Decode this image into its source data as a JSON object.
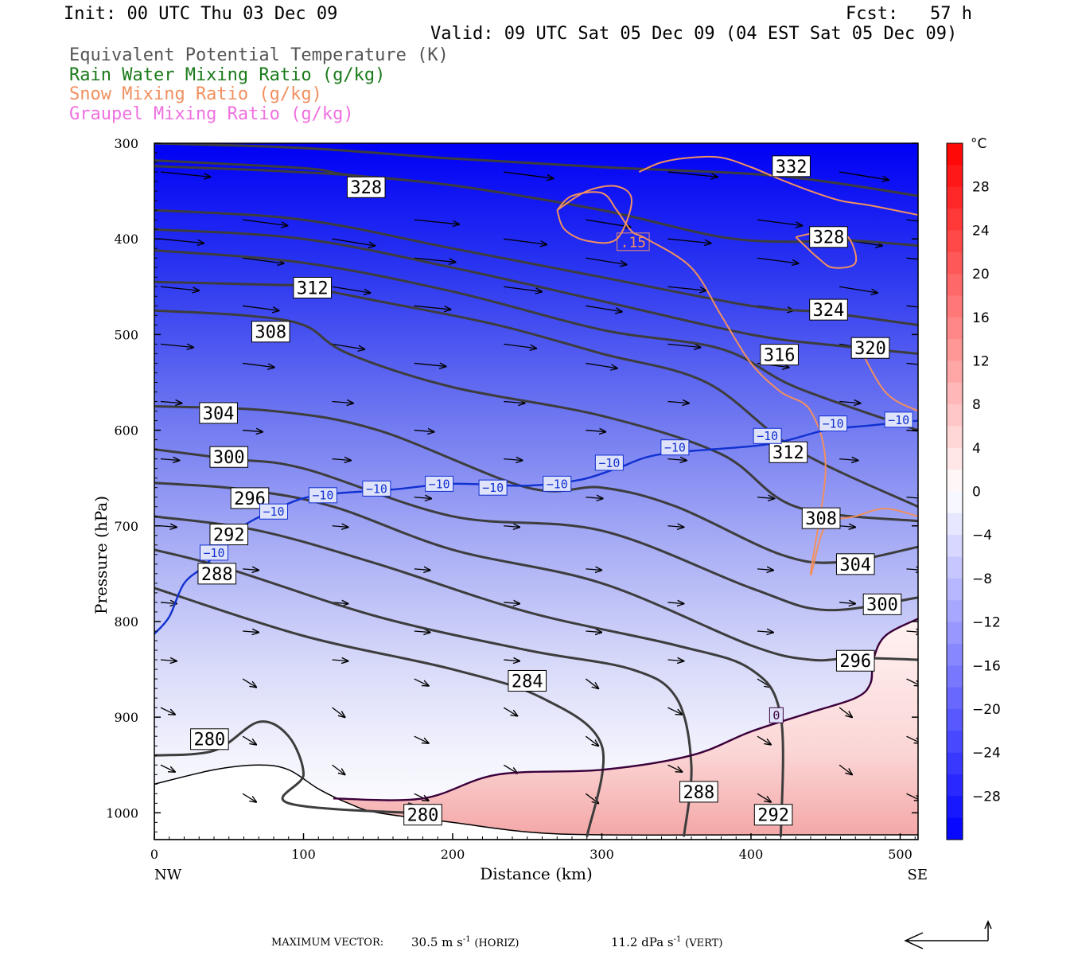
{
  "header": {
    "init": "Init: 00 UTC Thu 03 Dec 09",
    "fcst": "Fcst:   57 h",
    "valid": "Valid: 09 UTC Sat 05 Dec 09 (04 EST Sat 05 Dec 09)"
  },
  "variables": [
    {
      "label": "Equivalent Potential Temperature (K)",
      "color": "#555555"
    },
    {
      "label": "Rain Water Mixing Ratio (g/kg)",
      "color": "#1a7a1a"
    },
    {
      "label": "Snow Mixing Ratio (g/kg)",
      "color": "#f09060"
    },
    {
      "label": "Graupel Mixing Ratio (g/kg)",
      "color": "#f070e0"
    }
  ],
  "chart_data": {
    "type": "cross-section",
    "xlabel": "Distance (km)",
    "ylabel": "Pressure (hPa)",
    "xlim": [
      0,
      512
    ],
    "ylim": [
      1028,
      300
    ],
    "x_ticks": [
      0,
      100,
      200,
      300,
      400,
      500
    ],
    "y_ticks": [
      300,
      400,
      500,
      600,
      700,
      800,
      900,
      1000
    ],
    "x_end_labels": {
      "left": "NW",
      "right": "SE"
    },
    "colorbar": {
      "unit": "°C",
      "tick_labels": [
        "28",
        "24",
        "20",
        "16",
        "12",
        "8",
        "4",
        "0",
        "-4",
        "-8",
        "-12",
        "-16",
        "-20",
        "-24",
        "-28"
      ],
      "min": -32,
      "max": 32,
      "cold_color": "#0000ff",
      "warm_color": "#ff0000"
    },
    "theta_e_contours": [
      {
        "label": "332",
        "points": [
          [
            0,
            300
          ],
          [
            100,
            305
          ],
          [
            200,
            316
          ],
          [
            300,
            325
          ],
          [
            400,
            332
          ],
          [
            450,
            340
          ],
          [
            512,
            355
          ]
        ],
        "lx": 427,
        "ly": 324
      },
      {
        "label": "328",
        "points": [
          [
            0,
            318
          ],
          [
            100,
            326
          ],
          [
            130,
            333
          ],
          [
            200,
            344
          ],
          [
            300,
            370
          ],
          [
            380,
            398
          ],
          [
            430,
            403
          ],
          [
            460,
            401
          ],
          [
            512,
            407
          ]
        ],
        "lx": 452,
        "ly": 398
      },
      {
        "label": "328",
        "points": [
          [
            0,
            324
          ],
          [
            70,
            328
          ],
          [
            130,
            333
          ]
        ],
        "lx": 142,
        "ly": 346
      },
      {
        "label": "324",
        "points": [
          [
            0,
            370
          ],
          [
            100,
            380
          ],
          [
            200,
            410
          ],
          [
            300,
            440
          ],
          [
            400,
            470
          ],
          [
            450,
            477
          ],
          [
            512,
            490
          ]
        ],
        "lx": 452,
        "ly": 474
      },
      {
        "label": "320",
        "points": [
          [
            0,
            390
          ],
          [
            100,
            400
          ],
          [
            200,
            430
          ],
          [
            300,
            465
          ],
          [
            400,
            500
          ],
          [
            460,
            512
          ],
          [
            512,
            520
          ]
        ],
        "lx": 480,
        "ly": 514
      },
      {
        "label": "316",
        "points": [
          [
            0,
            412
          ],
          [
            100,
            425
          ],
          [
            200,
            455
          ],
          [
            300,
            495
          ],
          [
            380,
            515
          ],
          [
            430,
            555
          ],
          [
            512,
            600
          ]
        ],
        "lx": 419,
        "ly": 521
      },
      {
        "label": "312",
        "points": [
          [
            0,
            445
          ],
          [
            80,
            448
          ],
          [
            100,
            450
          ],
          [
            150,
            465
          ],
          [
            230,
            490
          ],
          [
            300,
            520
          ],
          [
            370,
            550
          ],
          [
            430,
            620
          ],
          [
            512,
            680
          ]
        ],
        "lx": 106,
        "ly": 451
      },
      {
        "label": "312",
        "points": [],
        "lx": 425,
        "ly": 623
      },
      {
        "label": "308",
        "points": [
          [
            0,
            475
          ],
          [
            60,
            480
          ],
          [
            100,
            490
          ],
          [
            130,
            520
          ],
          [
            200,
            555
          ],
          [
            300,
            585
          ],
          [
            380,
            625
          ],
          [
            430,
            680
          ],
          [
            512,
            695
          ]
        ],
        "lx": 78,
        "ly": 497
      },
      {
        "label": "308",
        "points": [],
        "lx": 447,
        "ly": 692
      },
      {
        "label": "304",
        "points": [
          [
            0,
            575
          ],
          [
            80,
            580
          ],
          [
            150,
            600
          ],
          [
            250,
            660
          ],
          [
            300,
            660
          ],
          [
            350,
            680
          ],
          [
            420,
            730
          ],
          [
            460,
            738
          ],
          [
            512,
            722
          ]
        ],
        "lx": 43,
        "ly": 582
      },
      {
        "label": "304",
        "points": [],
        "lx": 470,
        "ly": 740
      },
      {
        "label": "300",
        "points": [
          [
            0,
            620
          ],
          [
            50,
            630
          ],
          [
            100,
            640
          ],
          [
            200,
            690
          ],
          [
            300,
            705
          ],
          [
            400,
            765
          ],
          [
            450,
            788
          ],
          [
            512,
            775
          ]
        ],
        "lx": 50,
        "ly": 628
      },
      {
        "label": "300",
        "points": [],
        "lx": 488,
        "ly": 782
      },
      {
        "label": "296",
        "points": [
          [
            0,
            655
          ],
          [
            60,
            662
          ],
          [
            120,
            680
          ],
          [
            200,
            725
          ],
          [
            300,
            760
          ],
          [
            400,
            825
          ],
          [
            440,
            840
          ],
          [
            470,
            838
          ],
          [
            512,
            840
          ]
        ],
        "lx": 64,
        "ly": 671
      },
      {
        "label": "296",
        "points": [],
        "lx": 470,
        "ly": 841
      },
      {
        "label": "292",
        "points": [
          [
            0,
            690
          ],
          [
            70,
            705
          ],
          [
            150,
            740
          ],
          [
            250,
            790
          ],
          [
            350,
            825
          ],
          [
            400,
            850
          ],
          [
            420,
            900
          ],
          [
            420,
            1025
          ]
        ],
        "lx": 50,
        "ly": 709
      },
      {
        "label": "292",
        "points": [],
        "lx": 415,
        "ly": 1002
      },
      {
        "label": "288",
        "points": [
          [
            0,
            725
          ],
          [
            50,
            745
          ],
          [
            150,
            795
          ],
          [
            250,
            830
          ],
          [
            320,
            850
          ],
          [
            350,
            880
          ],
          [
            360,
            950
          ],
          [
            355,
            1025
          ]
        ],
        "lx": 42,
        "ly": 750
      },
      {
        "label": "288",
        "points": [],
        "lx": 365,
        "ly": 978
      },
      {
        "label": "284",
        "points": [
          [
            0,
            765
          ],
          [
            100,
            815
          ],
          [
            200,
            850
          ],
          [
            260,
            880
          ],
          [
            300,
            930
          ],
          [
            290,
            1025
          ]
        ],
        "lx": 250,
        "ly": 862
      },
      {
        "label": "280",
        "points": [
          [
            0,
            940
          ],
          [
            40,
            935
          ],
          [
            70,
            905
          ],
          [
            90,
            920
          ],
          [
            100,
            960
          ],
          [
            90,
            990
          ],
          [
            180,
            1000
          ],
          [
            170,
            990
          ]
        ],
        "lx": 37,
        "ly": 923
      }
    ],
    "theta_e_extra_labels": [
      {
        "label": "280",
        "lx": 180,
        "ly": 1002
      }
    ],
    "isotherms": [
      {
        "label": "-10",
        "color": "#1030d0",
        "points": [
          [
            0,
            813
          ],
          [
            10,
            795
          ],
          [
            20,
            760
          ],
          [
            35,
            740
          ],
          [
            55,
            705
          ],
          [
            85,
            680
          ],
          [
            110,
            668
          ],
          [
            160,
            662
          ],
          [
            200,
            656
          ],
          [
            250,
            658
          ],
          [
            285,
            652
          ],
          [
            310,
            640
          ],
          [
            340,
            625
          ],
          [
            410,
            615
          ],
          [
            450,
            600
          ],
          [
            480,
            595
          ],
          [
            512,
            590
          ]
        ],
        "labels": [
          [
            40,
            728
          ],
          [
            80,
            685
          ],
          [
            113,
            668
          ],
          [
            149,
            661
          ],
          [
            191,
            656
          ],
          [
            227,
            660
          ],
          [
            270,
            656
          ],
          [
            305,
            634
          ],
          [
            349,
            618
          ],
          [
            411,
            606
          ],
          [
            455,
            593
          ],
          [
            499,
            589
          ]
        ]
      },
      {
        "label": "0",
        "color": "#3a003a",
        "points": [
          [
            120,
            985
          ],
          [
            180,
            985
          ],
          [
            230,
            960
          ],
          [
            300,
            955
          ],
          [
            360,
            940
          ],
          [
            400,
            915
          ],
          [
            440,
            895
          ],
          [
            470,
            880
          ],
          [
            480,
            865
          ],
          [
            482,
            840
          ],
          [
            490,
            815
          ],
          [
            512,
            797
          ]
        ],
        "labels": [
          [
            417,
            898
          ]
        ]
      }
    ],
    "snow_contours": [
      {
        "label": ".15",
        "points": [
          [
            270,
            370
          ],
          [
            280,
            355
          ],
          [
            300,
            352
          ],
          [
            310,
            370
          ],
          [
            320,
            392
          ],
          [
            330,
            400
          ],
          [
            360,
            430
          ],
          [
            380,
            480
          ],
          [
            400,
            530
          ],
          [
            420,
            560
          ],
          [
            440,
            580
          ],
          [
            450,
            640
          ],
          [
            440,
            750
          ],
          [
            450,
            700
          ],
          [
            470,
            690
          ],
          [
            490,
            682
          ],
          [
            512,
            690
          ]
        ],
        "lx": 321,
        "ly": 403
      }
    ],
    "snow_extra": [
      [
        [
          320,
          392
        ],
        [
          330,
          380
        ],
        [
          320,
          392
        ]
      ]
    ],
    "wind_vectors": "arrow field, max 30.5 m s-1 horiz, 11.2 dPa s-1 vert"
  },
  "footer": {
    "max_vector_label": "MAXIMUM VECTOR:",
    "horiz_value": "30.5 m s",
    "horiz_unit": "(HORIZ)",
    "vert_value": "11.2 dPa s",
    "vert_unit": "(VERT)",
    "exponent": "-1"
  }
}
